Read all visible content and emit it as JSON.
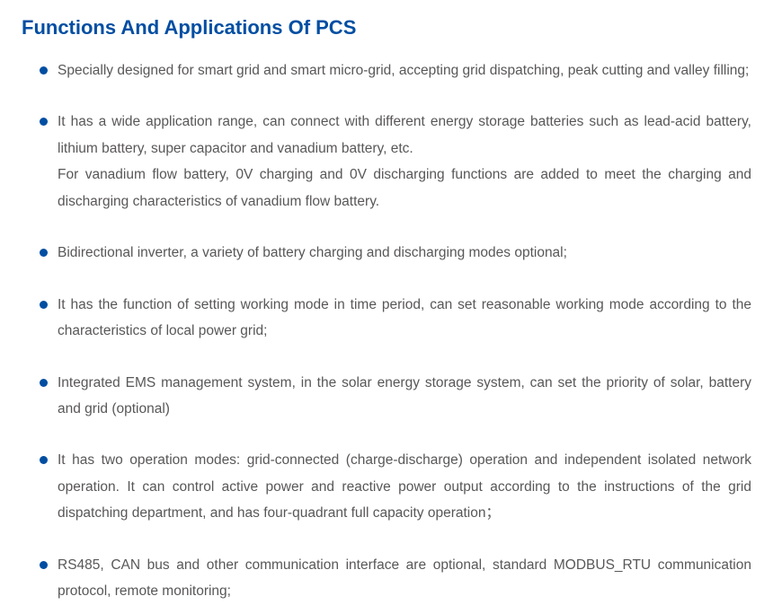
{
  "title": "Functions And Applications Of PCS",
  "title_color": "#004ea2",
  "bullet_color": "#004ea2",
  "text_color": "#595757",
  "background_color": "#ffffff",
  "items": [
    {
      "lines": [
        "Specially designed for smart grid and smart micro-grid, accepting grid dispatching, peak cutting and valley filling;"
      ]
    },
    {
      "lines": [
        "It has a wide application range, can connect with different energy storage batteries such as lead-acid battery, lithium battery, super capacitor and vanadium battery, etc.",
        "For vanadium flow battery, 0V charging and 0V discharging functions are added to meet the charging and discharging characteristics of vanadium flow battery."
      ]
    },
    {
      "lines": [
        "Bidirectional inverter, a variety of battery charging and discharging modes optional;"
      ]
    },
    {
      "lines": [
        "It has the function of setting working mode in time period, can set reasonable working mode according to the characteristics of local power grid;"
      ]
    },
    {
      "lines": [
        "Integrated EMS management system, in the solar energy storage system, can set the priority of solar, battery and grid (optional)"
      ]
    },
    {
      "lines": [
        "It has two operation modes: grid-connected (charge-discharge) operation and independent isolated network operation. It can control active power and reactive power output according to the instructions of the grid dispatching department, and has four-quadrant full capacity operation；"
      ]
    },
    {
      "lines": [
        "RS485, CAN bus and other communication interface are optional, standard MODBUS_RTU communication protocol, remote monitoring;"
      ]
    }
  ]
}
